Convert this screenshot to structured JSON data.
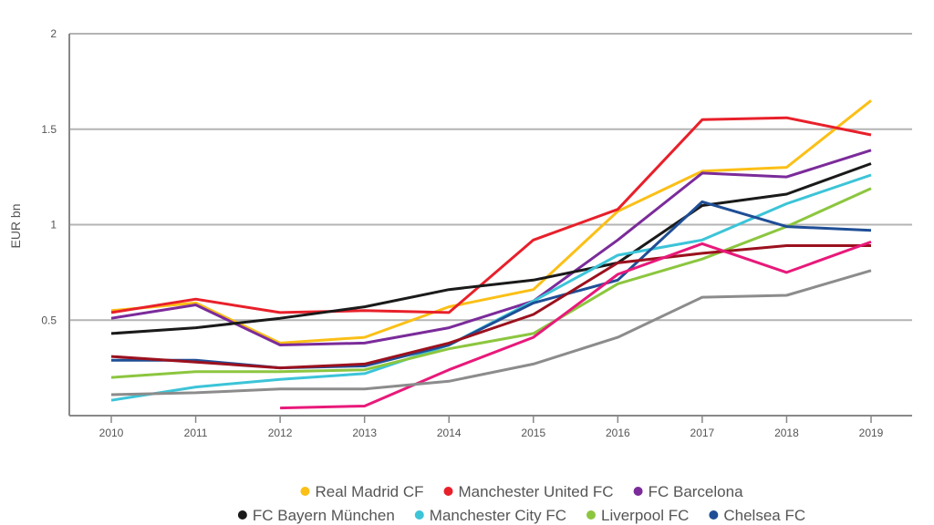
{
  "chart_data": {
    "type": "line",
    "title": "",
    "xlabel": "",
    "ylabel": "EUR bn",
    "ylim": [
      0,
      2
    ],
    "yticks": [
      "0.5",
      "1",
      "1.5",
      "2"
    ],
    "ytick_values": [
      0.5,
      1,
      1.5,
      2
    ],
    "x": [
      "2010",
      "2011",
      "2012",
      "2013",
      "2014",
      "2015",
      "2016",
      "2017",
      "2018",
      "2019"
    ],
    "grid": true,
    "legend_position": "bottom-center",
    "series": [
      {
        "name": "Real Madrid CF",
        "color": "#fbbf16",
        "values": [
          0.55,
          0.59,
          0.38,
          0.41,
          0.57,
          0.66,
          1.07,
          1.28,
          1.3,
          1.65
        ]
      },
      {
        "name": "Manchester United FC",
        "color": "#e8202a",
        "values": [
          0.54,
          0.61,
          0.54,
          0.55,
          0.54,
          0.92,
          1.08,
          1.55,
          1.56,
          1.47
        ]
      },
      {
        "name": "FC Barcelona",
        "color": "#7b2b9a",
        "values": [
          0.51,
          0.58,
          0.37,
          0.38,
          0.46,
          0.6,
          0.92,
          1.27,
          1.25,
          1.39
        ]
      },
      {
        "name": "FC Bayern München",
        "color": "#1a1a1a",
        "values": [
          0.43,
          0.46,
          0.51,
          0.57,
          0.66,
          0.71,
          0.8,
          1.1,
          1.16,
          1.32
        ]
      },
      {
        "name": "Manchester City FC",
        "color": "#3cc4d8",
        "values": [
          0.08,
          0.15,
          0.19,
          0.22,
          0.37,
          0.6,
          0.84,
          0.92,
          1.11,
          1.26
        ]
      },
      {
        "name": "Liverpool FC",
        "color": "#8cc63f",
        "values": [
          0.2,
          0.23,
          0.23,
          0.24,
          0.35,
          0.43,
          0.69,
          0.82,
          0.99,
          1.19
        ]
      },
      {
        "name": "Chelsea FC",
        "color": "#1f4e96",
        "values": [
          0.29,
          0.29,
          0.25,
          0.26,
          0.37,
          0.59,
          0.71,
          1.12,
          0.99,
          0.97
        ]
      },
      {
        "name": "",
        "color": "#9b111e",
        "values": [
          0.31,
          0.28,
          0.25,
          0.27,
          0.38,
          0.53,
          0.8,
          0.85,
          0.89,
          0.89
        ]
      },
      {
        "name": "",
        "color": "#e8197a",
        "values": [
          null,
          null,
          0.04,
          0.05,
          0.24,
          0.41,
          0.74,
          0.9,
          0.75,
          0.91
        ]
      },
      {
        "name": "",
        "color": "#8c8c8c",
        "values": [
          0.11,
          0.12,
          0.14,
          0.14,
          0.18,
          0.27,
          0.41,
          0.62,
          0.63,
          0.76
        ]
      }
    ]
  }
}
